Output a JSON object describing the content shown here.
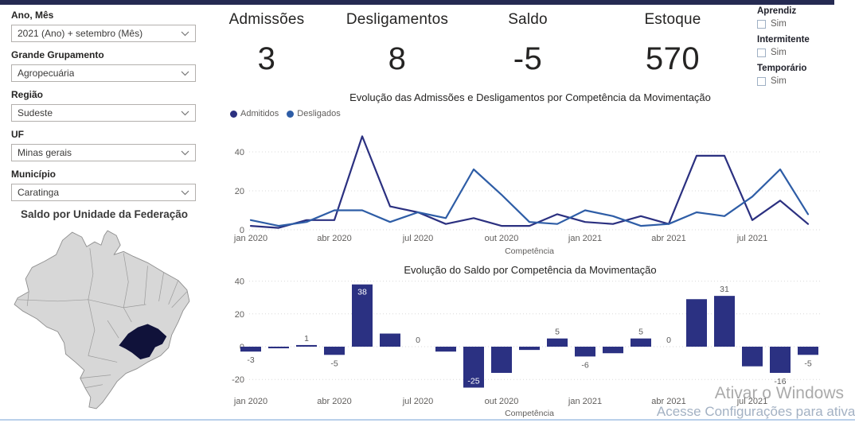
{
  "topbar_color": "#252a52",
  "sidebar": {
    "filters": [
      {
        "label": "Ano, Mês",
        "value": "2021 (Ano) + setembro (Mês)"
      },
      {
        "label": "Grande Grupamento",
        "value": "Agropecuária"
      },
      {
        "label": "Região",
        "value": "Sudeste"
      },
      {
        "label": "UF",
        "value": "Minas gerais"
      },
      {
        "label": "Município",
        "value": "Caratinga"
      }
    ],
    "map": {
      "title": "Saldo por Unidade da Federação",
      "highlighted_state": "Minas Gerais",
      "state_fill": "#d7d7d7",
      "state_border": "#8f8f8f",
      "highlight_fill": "#10123a"
    }
  },
  "kpis": [
    {
      "label": "Admissões",
      "value": "3"
    },
    {
      "label": "Desligamentos",
      "value": "8"
    },
    {
      "label": "Saldo",
      "value": "-5"
    },
    {
      "label": "Estoque",
      "value": "570"
    }
  ],
  "toggles": [
    {
      "label": "Aprendiz",
      "option": "Sim",
      "checked": false
    },
    {
      "label": "Intermitente",
      "option": "Sim",
      "checked": false
    },
    {
      "label": "Temporário",
      "option": "Sim",
      "checked": false
    }
  ],
  "chart_data": [
    {
      "type": "line",
      "title": "Evolução das Admissões e Desligamentos por Competência da Movimentação",
      "xlabel": "Competência",
      "x": [
        "jan 2020",
        "fev 2020",
        "mar 2020",
        "abr 2020",
        "mai 2020",
        "jun 2020",
        "jul 2020",
        "ago 2020",
        "set 2020",
        "out 2020",
        "nov 2020",
        "dez 2020",
        "jan 2021",
        "fev 2021",
        "mar 2021",
        "abr 2021",
        "mai 2021",
        "jun 2021",
        "jul 2021",
        "ago 2021",
        "set 2021"
      ],
      "x_tick_labels": [
        "jan 2020",
        "abr 2020",
        "jul 2020",
        "out 2020",
        "jan 2021",
        "abr 2021",
        "jul 2021"
      ],
      "x_tick_every": 3,
      "yticks": [
        40,
        20,
        0
      ],
      "ylim": [
        0,
        50
      ],
      "grid": "dotted",
      "legend_position": "top-left",
      "series": [
        {
          "name": "Admitidos",
          "color": "#2b3080",
          "values": [
            2,
            1,
            5,
            5,
            48,
            12,
            9,
            3,
            6,
            2,
            2,
            8,
            4,
            3,
            7,
            3,
            38,
            38,
            5,
            15,
            3
          ]
        },
        {
          "name": "Desligados",
          "color": "#2e5da6",
          "values": [
            5,
            2,
            4,
            10,
            10,
            4,
            9,
            6,
            31,
            18,
            4,
            3,
            10,
            7,
            2,
            3,
            9,
            7,
            17,
            31,
            8
          ]
        }
      ]
    },
    {
      "type": "bar",
      "title": "Evolução do Saldo por Competência da Movimentação",
      "xlabel": "Competência",
      "categories": [
        "jan 2020",
        "fev 2020",
        "mar 2020",
        "abr 2020",
        "mai 2020",
        "jun 2020",
        "jul 2020",
        "ago 2020",
        "set 2020",
        "out 2020",
        "nov 2020",
        "dez 2020",
        "jan 2021",
        "fev 2021",
        "mar 2021",
        "abr 2021",
        "mai 2021",
        "jun 2021",
        "jul 2021",
        "ago 2021",
        "set 2021"
      ],
      "x_tick_labels": [
        "jan 2020",
        "abr 2020",
        "jul 2020",
        "out 2020",
        "jan 2021",
        "abr 2021",
        "jul 2021"
      ],
      "x_tick_every": 3,
      "values": [
        -3,
        -1,
        1,
        -5,
        38,
        8,
        0,
        -3,
        -25,
        -16,
        -2,
        5,
        -6,
        -4,
        5,
        0,
        29,
        31,
        -12,
        -16,
        -5
      ],
      "data_labels": [
        {
          "text": "-3"
        },
        null,
        {
          "text": "1"
        },
        {
          "text": "-5"
        },
        {
          "text": "38",
          "inside": true
        },
        null,
        {
          "text": "0"
        },
        null,
        {
          "text": "-25",
          "inside": true
        },
        null,
        null,
        {
          "text": "5"
        },
        {
          "text": "-6"
        },
        null,
        {
          "text": "5"
        },
        {
          "text": "0"
        },
        null,
        {
          "text": "31"
        },
        null,
        {
          "text": "-16"
        },
        {
          "text": "-5"
        }
      ],
      "bar_color": "#2b3182",
      "label_color": "#5a5a5a",
      "label_inside_color": "#ffffff",
      "yticks": [
        40,
        20,
        0,
        -20
      ],
      "ylim": [
        -30,
        45
      ],
      "grid": "dotted"
    }
  ],
  "watermark": {
    "line1": "Ativar o Windows",
    "line2": "Acesse Configurações para ativar"
  }
}
